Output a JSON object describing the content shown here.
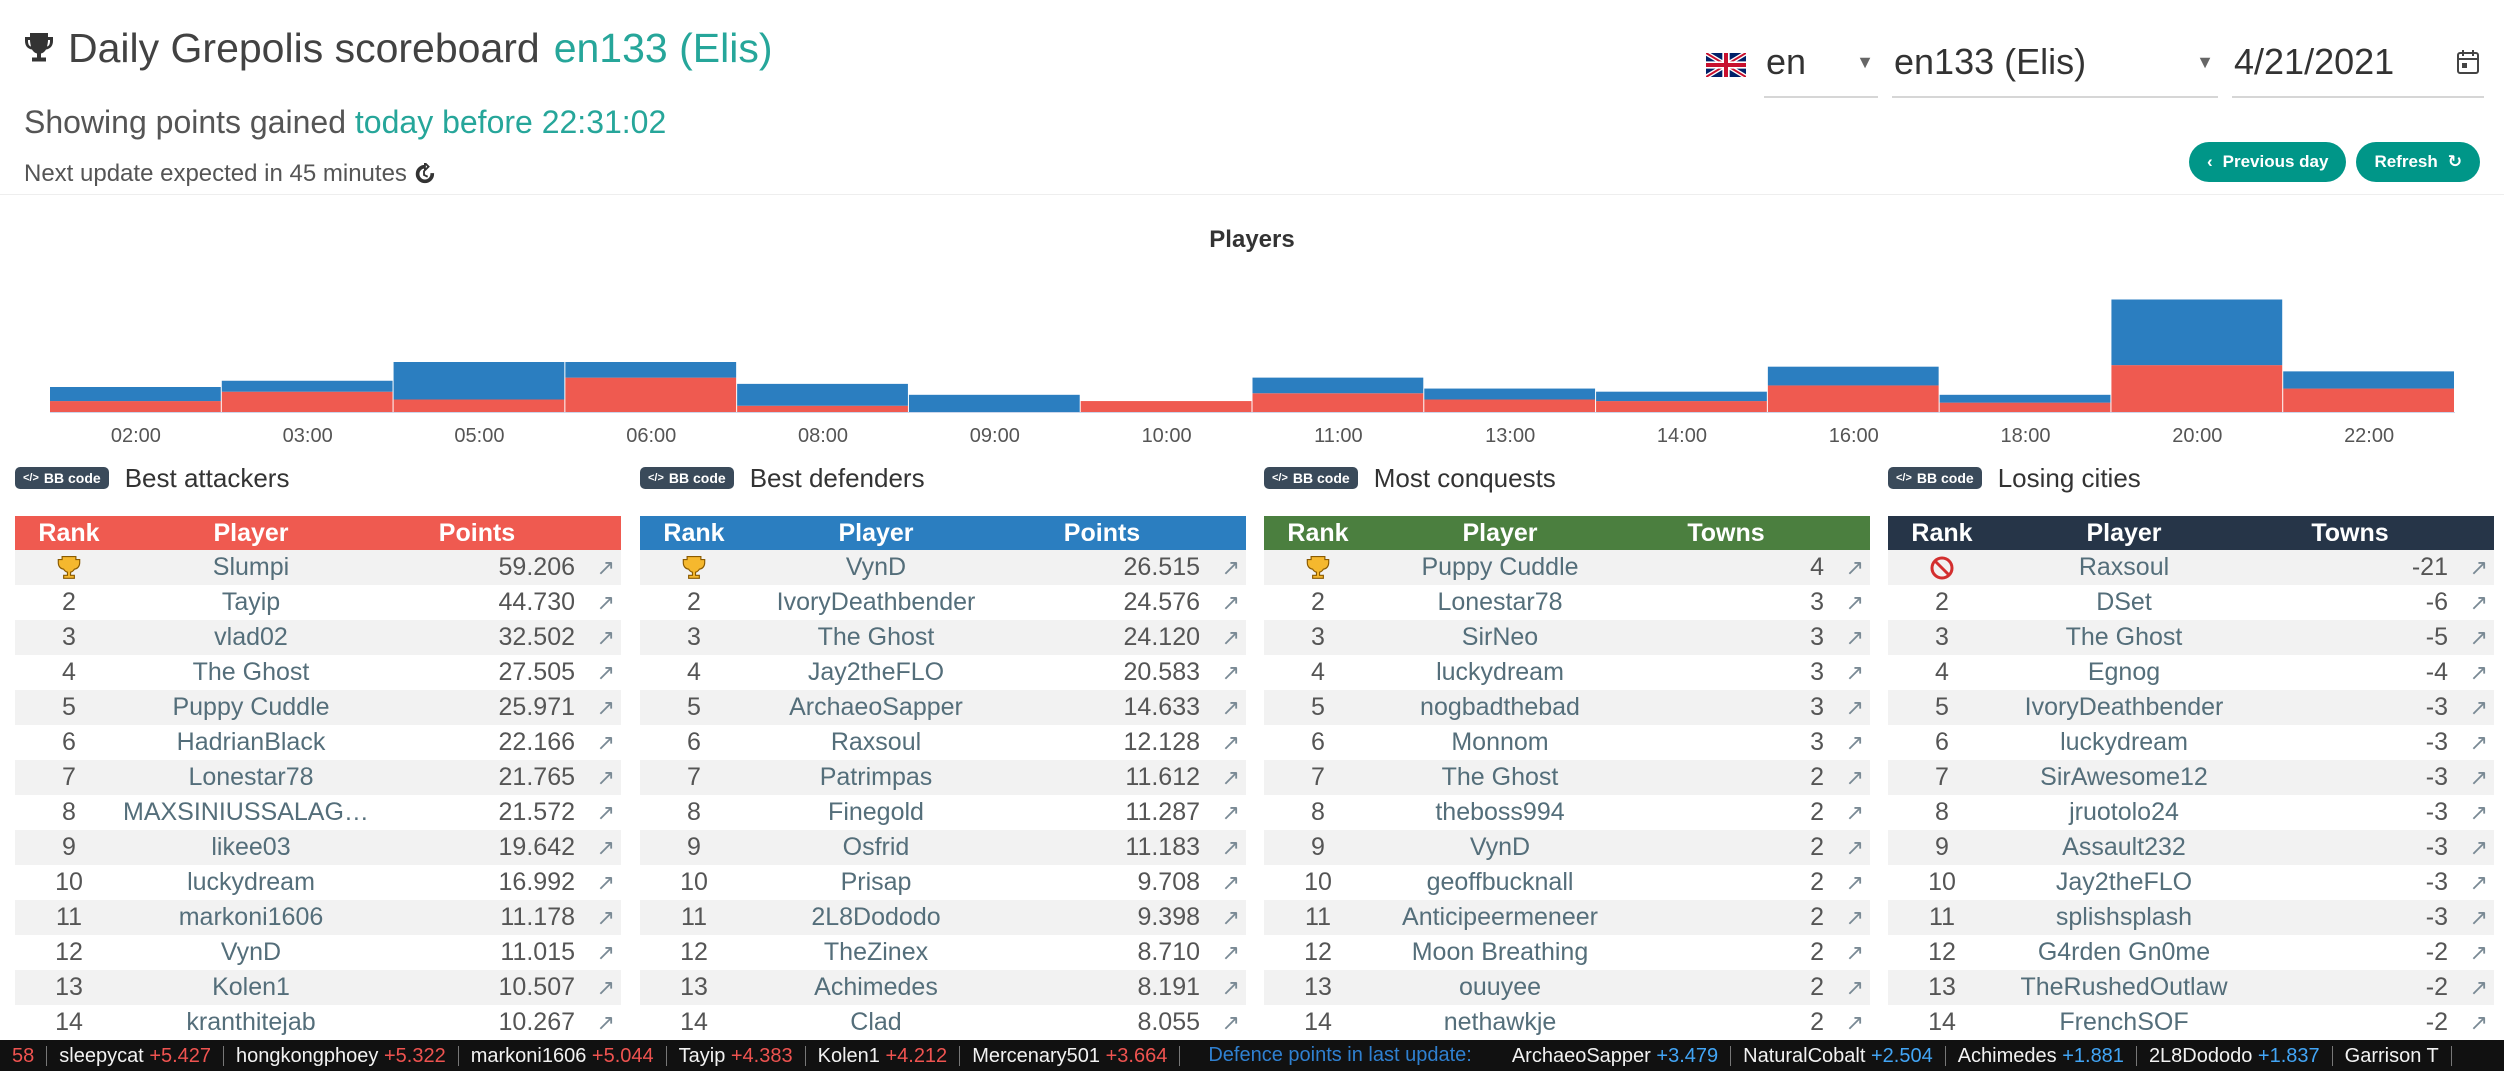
{
  "header": {
    "title": "Daily Grepolis scoreboard",
    "world": "en133 (Elis)",
    "subtitle_prefix": "Showing points gained",
    "subtitle_accent": "today before 22:31:02",
    "update_text": "Next update expected in 45 minutes"
  },
  "controls": {
    "language": "en",
    "world_select": "en133 (Elis)",
    "date": "4/21/2021",
    "previous_day": "Previous day",
    "refresh": "Refresh"
  },
  "colors": {
    "accent": "#26a69a",
    "attack": "#ef5a50",
    "defense": "#2b7ec0",
    "conquest": "#4b7f3f",
    "losing": "#263548"
  },
  "chart_data": {
    "type": "bar",
    "title": "Players",
    "categories": [
      "02:00",
      "03:00",
      "05:00",
      "06:00",
      "08:00",
      "09:00",
      "10:00",
      "11:00",
      "13:00",
      "14:00",
      "16:00",
      "18:00",
      "20:00",
      "22:00"
    ],
    "series": [
      {
        "name": "attack",
        "values": [
          7,
          13,
          8,
          22,
          4,
          0,
          7,
          12,
          8,
          7,
          17,
          6,
          30,
          15
        ]
      },
      {
        "name": "defense",
        "values": [
          9,
          7,
          24,
          10,
          14,
          11,
          0,
          10,
          7,
          6,
          12,
          5,
          42,
          11
        ]
      }
    ],
    "ylim": [
      0,
      80
    ]
  },
  "panels": [
    {
      "title": "Best attackers",
      "bb_label": "BB code",
      "headers": [
        "Rank",
        "Player",
        "Points"
      ],
      "rows": [
        [
          "1",
          "Slumpi",
          "59.206"
        ],
        [
          "2",
          "Tayip",
          "44.730"
        ],
        [
          "3",
          "vlad02",
          "32.502"
        ],
        [
          "4",
          "The Ghost",
          "27.505"
        ],
        [
          "5",
          "Puppy Cuddle",
          "25.971"
        ],
        [
          "6",
          "HadrianBlack",
          "22.166"
        ],
        [
          "7",
          "Lonestar78",
          "21.765"
        ],
        [
          "8",
          "MAXSINIUSSALAGREPONI...",
          "21.572"
        ],
        [
          "9",
          "likee03",
          "19.642"
        ],
        [
          "10",
          "luckydream",
          "16.992"
        ],
        [
          "11",
          "markoni1606",
          "11.178"
        ],
        [
          "12",
          "VynD",
          "11.015"
        ],
        [
          "13",
          "Kolen1",
          "10.507"
        ],
        [
          "14",
          "kranthitejab",
          "10.267"
        ]
      ]
    },
    {
      "title": "Best defenders",
      "bb_label": "BB code",
      "headers": [
        "Rank",
        "Player",
        "Points"
      ],
      "rows": [
        [
          "1",
          "VynD",
          "26.515"
        ],
        [
          "2",
          "IvoryDeathbender",
          "24.576"
        ],
        [
          "3",
          "The Ghost",
          "24.120"
        ],
        [
          "4",
          "Jay2theFLO",
          "20.583"
        ],
        [
          "5",
          "ArchaeoSapper",
          "14.633"
        ],
        [
          "6",
          "Raxsoul",
          "12.128"
        ],
        [
          "7",
          "Patrimpas",
          "11.612"
        ],
        [
          "8",
          "Finegold",
          "11.287"
        ],
        [
          "9",
          "Osfrid",
          "11.183"
        ],
        [
          "10",
          "Prisap",
          "9.708"
        ],
        [
          "11",
          "2L8Dododo",
          "9.398"
        ],
        [
          "12",
          "TheZinex",
          "8.710"
        ],
        [
          "13",
          "Achimedes",
          "8.191"
        ],
        [
          "14",
          "Clad",
          "8.055"
        ]
      ]
    },
    {
      "title": "Most conquests",
      "bb_label": "BB code",
      "headers": [
        "Rank",
        "Player",
        "Towns"
      ],
      "rows": [
        [
          "1",
          "Puppy Cuddle",
          "4"
        ],
        [
          "2",
          "Lonestar78",
          "3"
        ],
        [
          "3",
          "SirNeo",
          "3"
        ],
        [
          "4",
          "luckydream",
          "3"
        ],
        [
          "5",
          "nogbadthebad",
          "3"
        ],
        [
          "6",
          "Monnom",
          "3"
        ],
        [
          "7",
          "The Ghost",
          "2"
        ],
        [
          "8",
          "theboss994",
          "2"
        ],
        [
          "9",
          "VynD",
          "2"
        ],
        [
          "10",
          "geoffbucknall",
          "2"
        ],
        [
          "11",
          "Anticipeermeneer",
          "2"
        ],
        [
          "12",
          "Moon Breathing",
          "2"
        ],
        [
          "13",
          "ouuyee",
          "2"
        ],
        [
          "14",
          "nethawkje",
          "2"
        ]
      ]
    },
    {
      "title": "Losing cities",
      "bb_label": "BB code",
      "headers": [
        "Rank",
        "Player",
        "Towns"
      ],
      "rows": [
        [
          "1",
          "Raxsoul",
          "-21"
        ],
        [
          "2",
          "DSet",
          "-6"
        ],
        [
          "3",
          "The Ghost",
          "-5"
        ],
        [
          "4",
          "Egnog",
          "-4"
        ],
        [
          "5",
          "IvoryDeathbender",
          "-3"
        ],
        [
          "6",
          "luckydream",
          "-3"
        ],
        [
          "7",
          "SirAwesome12",
          "-3"
        ],
        [
          "8",
          "jruotolo24",
          "-3"
        ],
        [
          "9",
          "Assault232",
          "-3"
        ],
        [
          "10",
          "Jay2theFLO",
          "-3"
        ],
        [
          "11",
          "splishsplash",
          "-3"
        ],
        [
          "12",
          "G4rden Gn0me",
          "-2"
        ],
        [
          "13",
          "TheRushedOutlaw",
          "-2"
        ],
        [
          "14",
          "FrenchSOF",
          "-2"
        ]
      ]
    }
  ],
  "ticker": {
    "attack": [
      {
        "name": "",
        "delta": "58"
      },
      {
        "name": "sleepycat",
        "delta": "+5.427"
      },
      {
        "name": "hongkongphoey",
        "delta": "+5.322"
      },
      {
        "name": "markoni1606",
        "delta": "+5.044"
      },
      {
        "name": "Tayip",
        "delta": "+4.383"
      },
      {
        "name": "Kolen1",
        "delta": "+4.212"
      },
      {
        "name": "Mercenary501",
        "delta": "+3.664"
      }
    ],
    "defence_label": "Defence points in last update:",
    "defence": [
      {
        "name": "ArchaeoSapper",
        "delta": "+3.479"
      },
      {
        "name": "NaturalCobalt",
        "delta": "+2.504"
      },
      {
        "name": "Achimedes",
        "delta": "+1.881"
      },
      {
        "name": "2L8Dododo",
        "delta": "+1.837"
      },
      {
        "name": "Garrison T",
        "delta": ""
      }
    ]
  }
}
